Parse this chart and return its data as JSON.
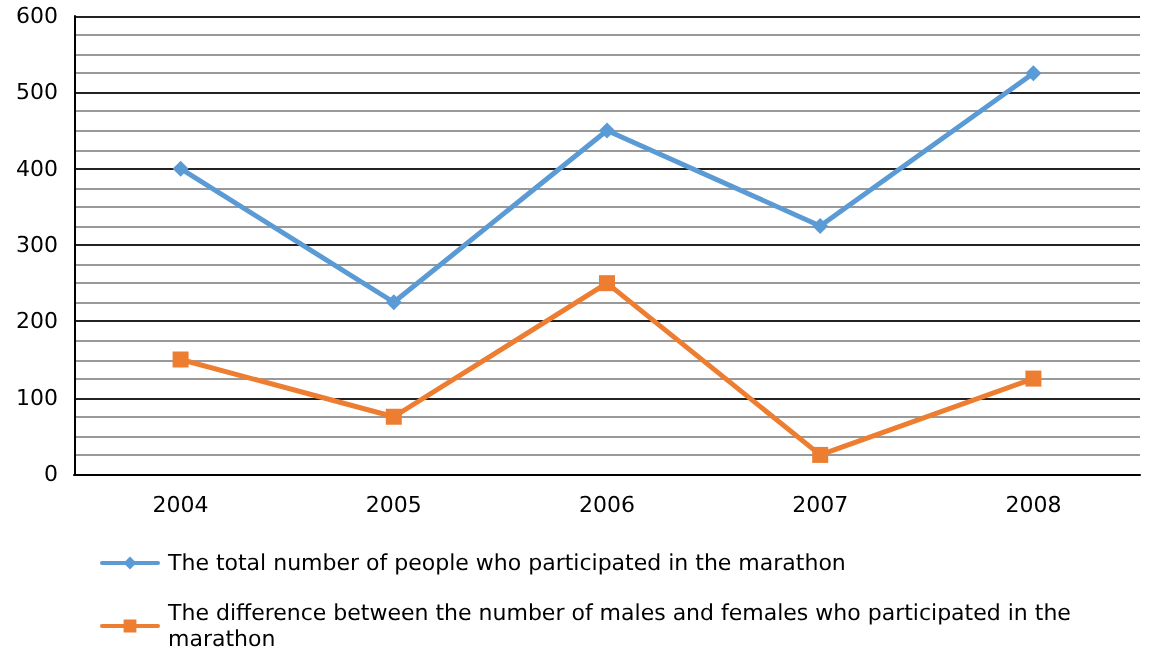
{
  "chart_data": {
    "type": "line",
    "categories": [
      "2004",
      "2005",
      "2006",
      "2007",
      "2008"
    ],
    "series": [
      {
        "name": "The total number of people who participated in the marathon",
        "color": "#5b9bd5",
        "values": [
          400,
          225,
          450,
          325,
          525
        ],
        "marker": "diamond"
      },
      {
        "name": "The difference between the number of males and females who participated in the marathon",
        "color": "#ed7d31",
        "values": [
          150,
          75,
          250,
          25,
          125
        ],
        "marker": "square"
      }
    ],
    "ylim": [
      0,
      600
    ],
    "yticks": [
      0,
      100,
      200,
      300,
      400,
      500,
      600
    ],
    "grid": "y",
    "legend": "bottom"
  }
}
